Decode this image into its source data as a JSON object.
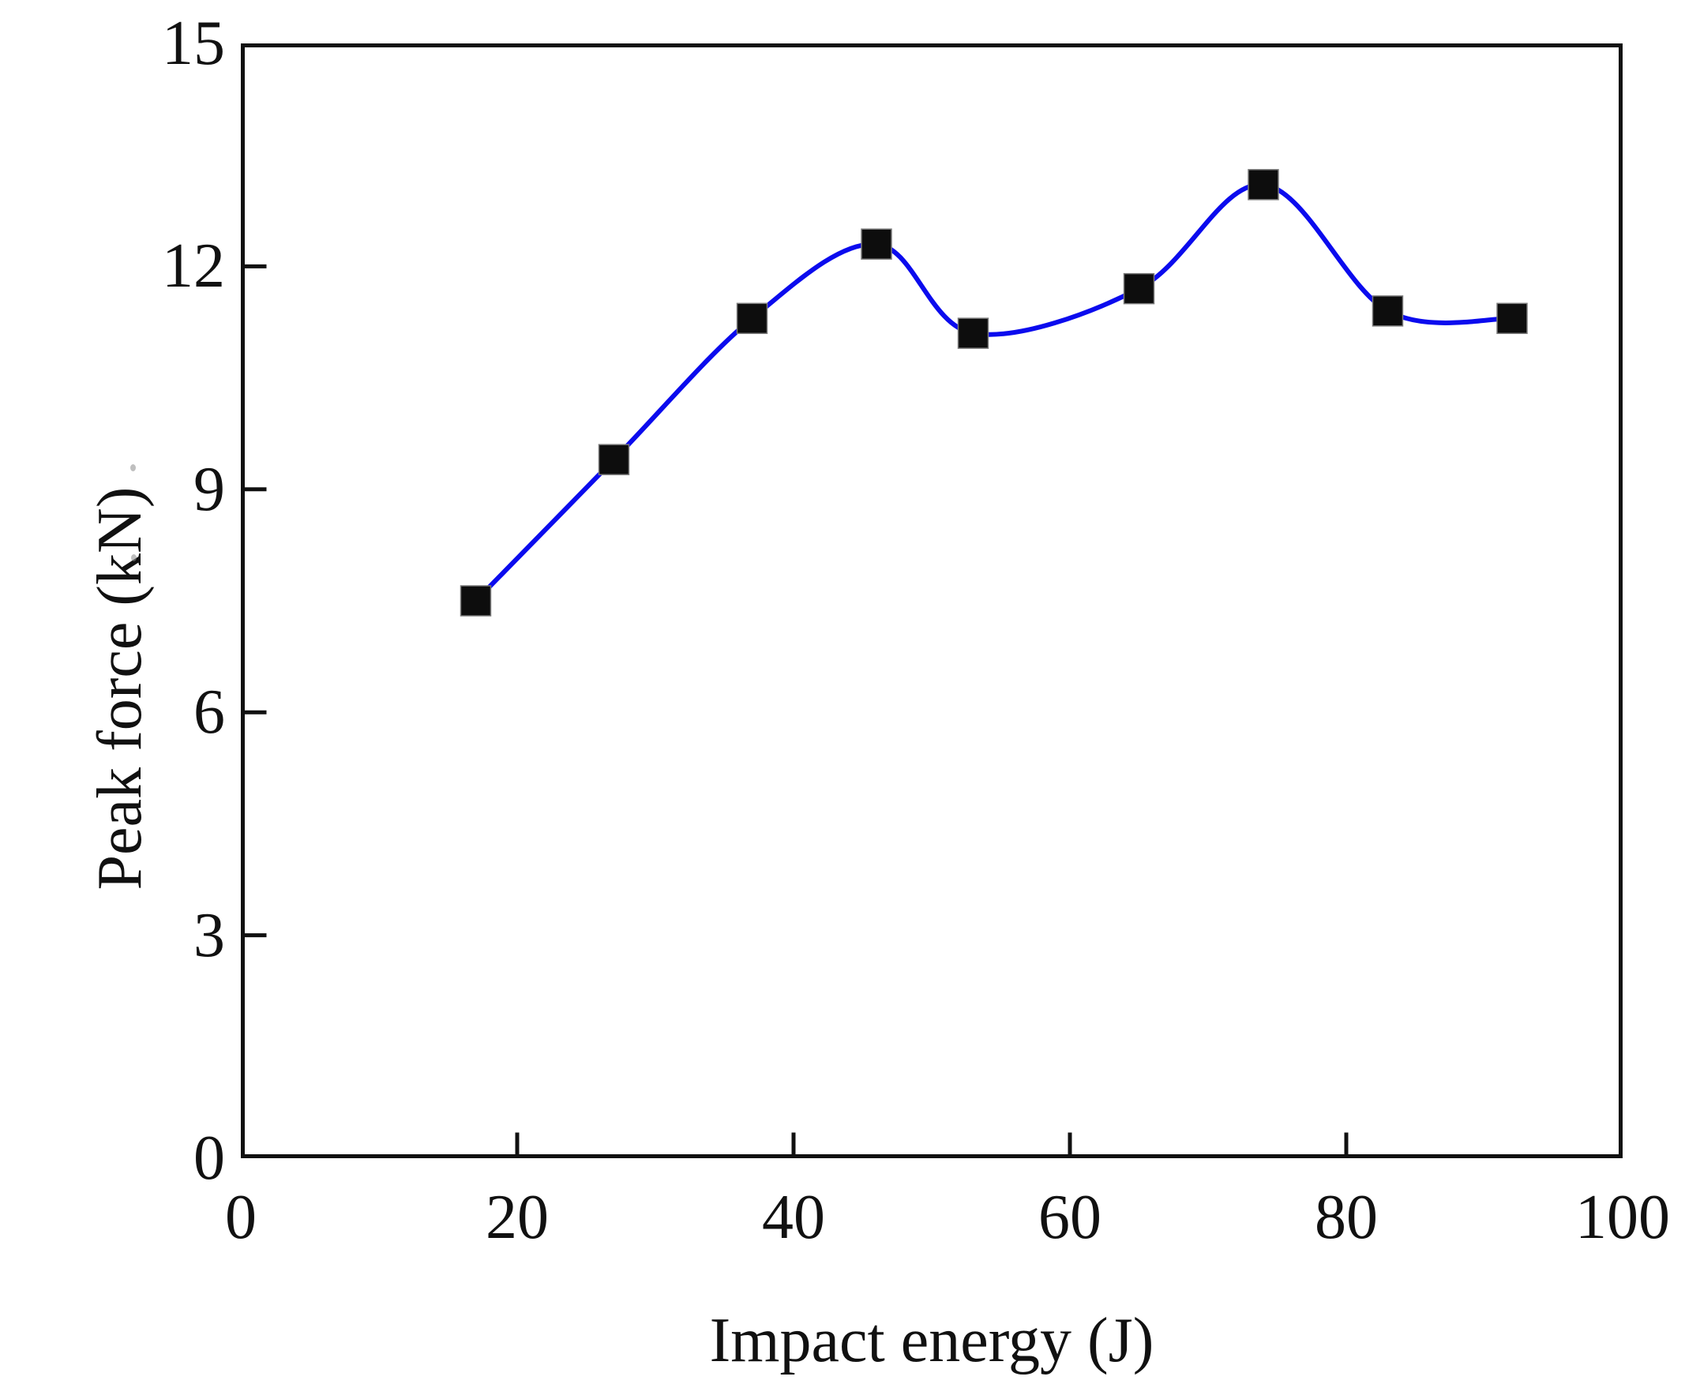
{
  "chart_data": {
    "type": "line",
    "title": "",
    "xlabel": "Impact energy (J)",
    "ylabel": "Peak force (kN)",
    "xlim": [
      0,
      100
    ],
    "ylim": [
      0,
      15
    ],
    "x_ticks": [
      0,
      20,
      40,
      60,
      80,
      100
    ],
    "y_ticks": [
      0,
      3,
      6,
      9,
      12,
      15
    ],
    "grid": false,
    "legend": "none",
    "series": [
      {
        "name": "Peak force vs impact energy",
        "line_color": "#0b0bee",
        "marker": "square",
        "marker_color": "#0d0d0d",
        "smooth": true,
        "points": [
          {
            "x": 17,
            "y": 7.5
          },
          {
            "x": 27,
            "y": 9.4
          },
          {
            "x": 37,
            "y": 11.3
          },
          {
            "x": 46,
            "y": 12.3
          },
          {
            "x": 53,
            "y": 11.1
          },
          {
            "x": 65,
            "y": 11.7
          },
          {
            "x": 74,
            "y": 13.1
          },
          {
            "x": 83,
            "y": 11.4
          },
          {
            "x": 92,
            "y": 11.3
          }
        ]
      }
    ],
    "axis_color": "#111111"
  }
}
